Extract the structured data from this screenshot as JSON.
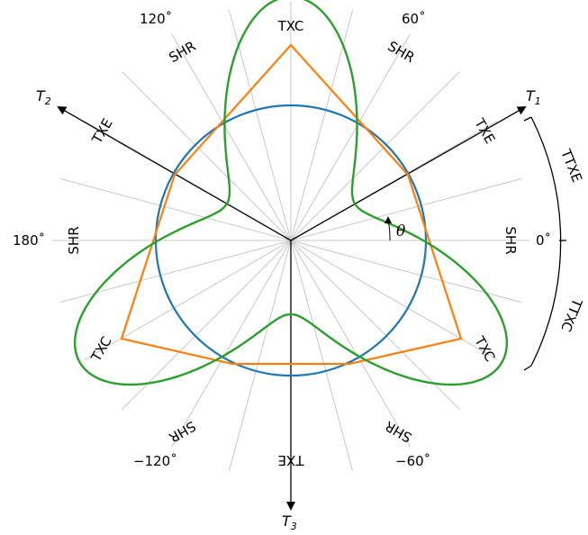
{
  "axes": {
    "t1": {
      "letter": "T",
      "sub": "1"
    },
    "t2": {
      "letter": "T",
      "sub": "2"
    },
    "t3": {
      "letter": "T",
      "sub": "3"
    }
  },
  "angle_labels": {
    "a0": "0˚",
    "a60": "60˚",
    "a120": "120˚",
    "a180": "180˚",
    "am60": "−60˚",
    "am120": "−120˚"
  },
  "mode_labels": {
    "txc_top": "TXC",
    "txc_left": "TXC",
    "txc_right": "TXC",
    "txe_bottom": "TXE",
    "txe_left": "TXE",
    "txe_right": "TXE",
    "shr_0": "SHR",
    "shr_60": "SHR",
    "shr_120": "SHR",
    "shr_180": "SHR",
    "shr_m60": "SHR",
    "shr_m120": "SHR"
  },
  "arc_labels": {
    "ttxe": "TTXE",
    "ttxc": "TTXC"
  },
  "theta_symbol": "θ",
  "colors": {
    "circle": "#1f77b4",
    "triangle": "#ff7f0e",
    "rounded": "#2ca02c",
    "grid": "#c8c8c8",
    "axis": "#000000"
  }
}
